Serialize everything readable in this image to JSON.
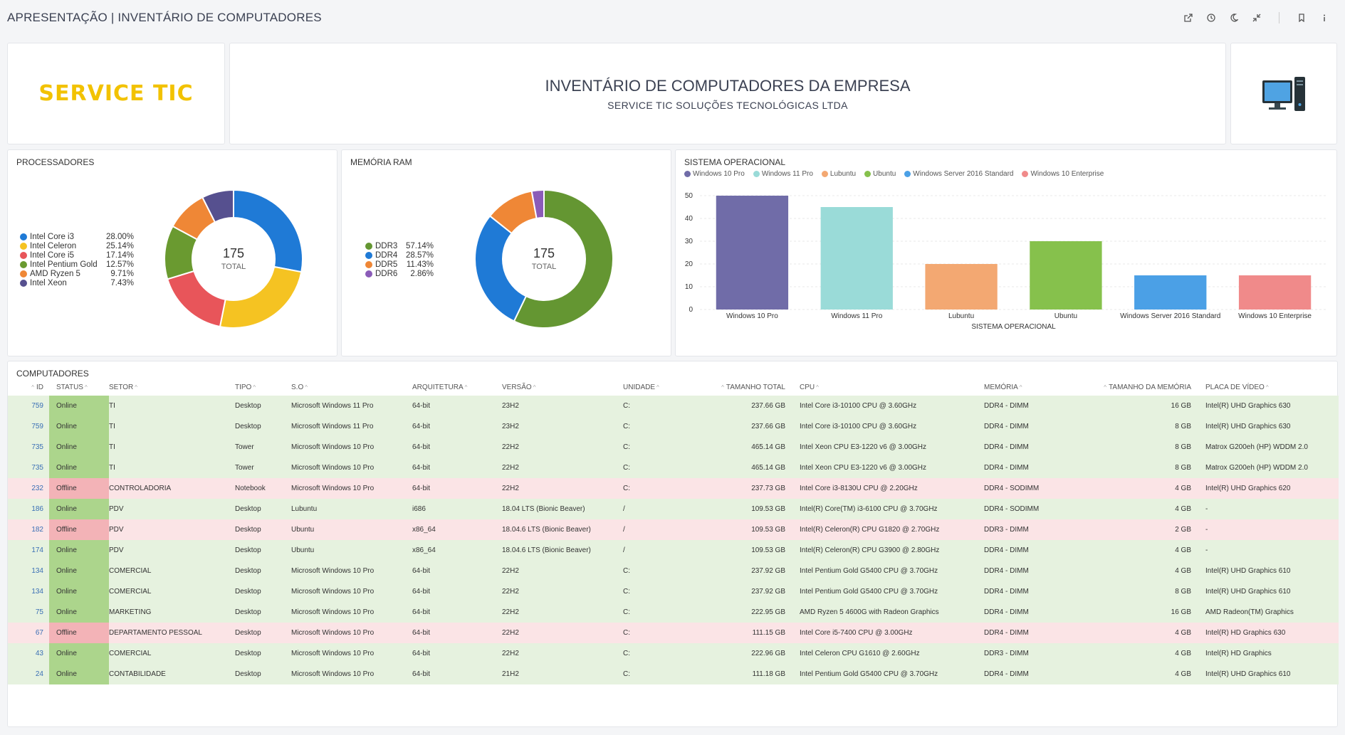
{
  "page": {
    "title": "APRESENTAÇÃO | INVENTÁRIO DE COMPUTADORES"
  },
  "toolbar": {
    "icons": [
      "external-link-icon",
      "clock-icon",
      "moon-icon",
      "collapse-icon",
      "bookmark-icon",
      "info-icon"
    ]
  },
  "header": {
    "logo": "SERVICE TIC",
    "title": "INVENTÁRIO DE COMPUTADORES DA EMPRESA",
    "subtitle": "SERVICE TIC SOLUÇÕES TECNOLÓGICAS LTDA",
    "icon": "desktop-computer-icon"
  },
  "chart_data": [
    {
      "type": "pie",
      "title": "PROCESSADORES",
      "total": "175",
      "total_label": "TOTAL",
      "labels": [
        "Intel Core i3",
        "Intel Celeron",
        "Intel Core i5",
        "Intel Pentium Gold",
        "AMD Ryzen 5",
        "Intel Xeon"
      ],
      "values": [
        28.0,
        25.14,
        17.14,
        12.57,
        9.71,
        7.43
      ],
      "display": [
        "28.00%",
        "25.14%",
        "17.14%",
        "12.57%",
        "9.71%",
        "7.43%"
      ],
      "colors": [
        "#1f7ad6",
        "#f5c322",
        "#e8555a",
        "#6a9a30",
        "#ef8736",
        "#56508f"
      ]
    },
    {
      "type": "pie",
      "title": "MEMÓRIA RAM",
      "total": "175",
      "total_label": "TOTAL",
      "labels": [
        "DDR3",
        "DDR4",
        "DDR5",
        "DDR6"
      ],
      "values": [
        57.14,
        28.57,
        11.43,
        2.86
      ],
      "display": [
        "57.14%",
        "28.57%",
        "11.43%",
        "2.86%"
      ],
      "colors": [
        "#649632",
        "#1f7ad6",
        "#ef8736",
        "#8b5cb8"
      ]
    },
    {
      "type": "bar",
      "title": "SISTEMA OPERACIONAL",
      "xlabel": "SISTEMA OPERACIONAL",
      "ylabel": "",
      "categories": [
        "Windows 10 Pro",
        "Windows 11 Pro",
        "Lubuntu",
        "Ubuntu",
        "Windows Server 2016 Standard",
        "Windows 10 Enterprise"
      ],
      "values": [
        50,
        45,
        20,
        30,
        15,
        15
      ],
      "colors": [
        "#706ca8",
        "#9adbd8",
        "#f3a872",
        "#86c14c",
        "#4ba0e6",
        "#f08a8a"
      ],
      "ylim": [
        0,
        50
      ],
      "yticks": [
        "0",
        "10",
        "20",
        "30",
        "40",
        "50"
      ],
      "grid": true,
      "legend": "top-left"
    }
  ],
  "table": {
    "title": "COMPUTADORES",
    "columns": [
      "ID",
      "STATUS",
      "SETOR",
      "TIPO",
      "S.O",
      "ARQUITETURA",
      "VERSÃO",
      "UNIDADE",
      "TAMANHO TOTAL",
      "CPU",
      "MEMÓRIA",
      "TAMANHO DA MEMÓRIA",
      "PLACA DE VÍDEO"
    ],
    "rows": [
      [
        "759",
        "Online",
        "TI",
        "Desktop",
        "Microsoft Windows 11 Pro",
        "64-bit",
        "23H2",
        "C:",
        "237.66 GB",
        "Intel Core i3-10100 CPU @ 3.60GHz",
        "DDR4 - DIMM",
        "16 GB",
        "Intel(R) UHD Graphics 630"
      ],
      [
        "759",
        "Online",
        "TI",
        "Desktop",
        "Microsoft Windows 11 Pro",
        "64-bit",
        "23H2",
        "C:",
        "237.66 GB",
        "Intel Core i3-10100 CPU @ 3.60GHz",
        "DDR4 - DIMM",
        "8 GB",
        "Intel(R) UHD Graphics 630"
      ],
      [
        "735",
        "Online",
        "TI",
        "Tower",
        "Microsoft Windows 10 Pro",
        "64-bit",
        "22H2",
        "C:",
        "465.14 GB",
        "Intel Xeon CPU E3-1220 v6 @ 3.00GHz",
        "DDR4 - DIMM",
        "8 GB",
        "Matrox G200eh (HP) WDDM 2.0"
      ],
      [
        "735",
        "Online",
        "TI",
        "Tower",
        "Microsoft Windows 10 Pro",
        "64-bit",
        "22H2",
        "C:",
        "465.14 GB",
        "Intel Xeon CPU E3-1220 v6 @ 3.00GHz",
        "DDR4 - DIMM",
        "8 GB",
        "Matrox G200eh (HP) WDDM 2.0"
      ],
      [
        "232",
        "Offline",
        "CONTROLADORIA",
        "Notebook",
        "Microsoft Windows 10 Pro",
        "64-bit",
        "22H2",
        "C:",
        "237.73 GB",
        "Intel Core i3-8130U CPU @ 2.20GHz",
        "DDR4 - SODIMM",
        "4 GB",
        "Intel(R) UHD Graphics 620"
      ],
      [
        "186",
        "Online",
        "PDV",
        "Desktop",
        "Lubuntu",
        "i686",
        "18.04 LTS (Bionic Beaver)",
        "/",
        "109.53 GB",
        "Intel(R) Core(TM) i3-6100 CPU @ 3.70GHz",
        "DDR4 - SODIMM",
        "4 GB",
        "-"
      ],
      [
        "182",
        "Offline",
        "PDV",
        "Desktop",
        "Ubuntu",
        "x86_64",
        "18.04.6 LTS (Bionic Beaver)",
        "/",
        "109.53 GB",
        "Intel(R) Celeron(R) CPU G1820 @ 2.70GHz",
        "DDR3 - DIMM",
        "2 GB",
        "-"
      ],
      [
        "174",
        "Online",
        "PDV",
        "Desktop",
        "Ubuntu",
        "x86_64",
        "18.04.6 LTS (Bionic Beaver)",
        "/",
        "109.53 GB",
        "Intel(R) Celeron(R) CPU G3900 @ 2.80GHz",
        "DDR4 - DIMM",
        "4 GB",
        "-"
      ],
      [
        "134",
        "Online",
        "COMERCIAL",
        "Desktop",
        "Microsoft Windows 10 Pro",
        "64-bit",
        "22H2",
        "C:",
        "237.92 GB",
        "Intel Pentium Gold G5400 CPU @ 3.70GHz",
        "DDR4 - DIMM",
        "4 GB",
        "Intel(R) UHD Graphics 610"
      ],
      [
        "134",
        "Online",
        "COMERCIAL",
        "Desktop",
        "Microsoft Windows 10 Pro",
        "64-bit",
        "22H2",
        "C:",
        "237.92 GB",
        "Intel Pentium Gold G5400 CPU @ 3.70GHz",
        "DDR4 - DIMM",
        "8 GB",
        "Intel(R) UHD Graphics 610"
      ],
      [
        "75",
        "Online",
        "MARKETING",
        "Desktop",
        "Microsoft Windows 10 Pro",
        "64-bit",
        "22H2",
        "C:",
        "222.95 GB",
        "AMD Ryzen 5 4600G with Radeon Graphics",
        "DDR4 - DIMM",
        "16 GB",
        "AMD Radeon(TM) Graphics"
      ],
      [
        "67",
        "Offline",
        "DEPARTAMENTO PESSOAL",
        "Desktop",
        "Microsoft Windows 10 Pro",
        "64-bit",
        "22H2",
        "C:",
        "111.15 GB",
        "Intel Core i5-7400 CPU @ 3.00GHz",
        "DDR4 - DIMM",
        "4 GB",
        "Intel(R) HD Graphics 630"
      ],
      [
        "43",
        "Online",
        "COMERCIAL",
        "Desktop",
        "Microsoft Windows 10 Pro",
        "64-bit",
        "22H2",
        "C:",
        "222.96 GB",
        "Intel Celeron CPU G1610 @ 2.60GHz",
        "DDR3 - DIMM",
        "4 GB",
        "Intel(R) HD Graphics"
      ],
      [
        "24",
        "Online",
        "CONTABILIDADE",
        "Desktop",
        "Microsoft Windows 10 Pro",
        "64-bit",
        "21H2",
        "C:",
        "111.18 GB",
        "Intel Pentium Gold G5400 CPU @ 3.70GHz",
        "DDR4 - DIMM",
        "4 GB",
        "Intel(R) UHD Graphics 610"
      ]
    ]
  }
}
